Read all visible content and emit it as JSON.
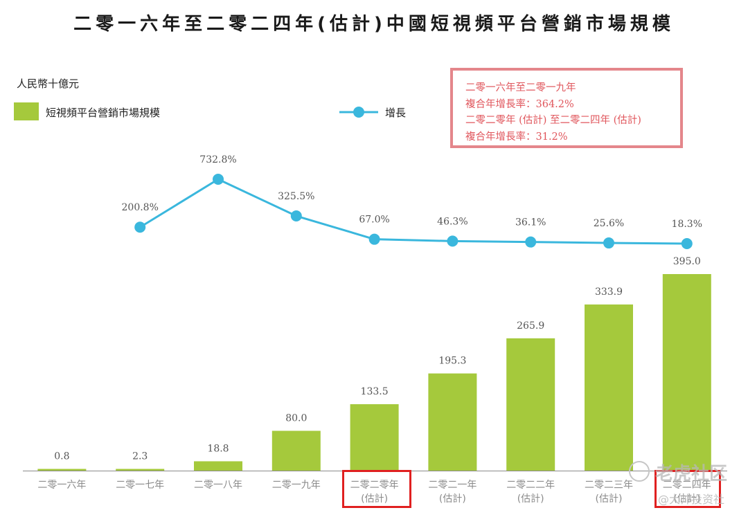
{
  "title": "二零一六年至二零二四年(估計)中國短視頻平台營銷市場規模",
  "unit": "人民幣十億元",
  "legend": {
    "bar": "短視頻平台營銷市場規模",
    "line": "增長"
  },
  "cagr_box": {
    "line1": "二零一六年至二零一九年",
    "line2": "複合年增長率：364.2%",
    "line3": "二零二零年 (估計) 至二零二四年 (估計)",
    "line4": "複合年增長率：31.2%"
  },
  "watermark": {
    "text1": "老虎社区",
    "text2": "@大帅投资社"
  },
  "colors": {
    "bar": "#a5c93c",
    "line": "#3ab7dd",
    "cagr_text": "#e0565c",
    "highlight": "#e02020"
  },
  "chart_data": {
    "type": "bar",
    "categories": [
      [
        "二零一六年"
      ],
      [
        "二零一七年"
      ],
      [
        "二零一八年"
      ],
      [
        "二零一九年"
      ],
      [
        "二零二零年",
        "(估計)"
      ],
      [
        "二零二一年",
        "(估計)"
      ],
      [
        "二零二二年",
        "(估計)"
      ],
      [
        "二零二三年",
        "(估計)"
      ],
      [
        "二零二四年",
        "(估計)"
      ]
    ],
    "series": [
      {
        "name": "短視頻平台營銷市場規模",
        "type": "bar",
        "values": [
          0.8,
          2.3,
          18.8,
          80.0,
          133.5,
          195.3,
          265.9,
          333.9,
          395.0
        ],
        "labels": [
          "0.8",
          "2.3",
          "18.8",
          "80.0",
          "133.5",
          "195.3",
          "265.9",
          "333.9",
          "395.0"
        ]
      },
      {
        "name": "增長",
        "type": "line",
        "values": [
          null,
          200.8,
          732.8,
          325.5,
          67.0,
          46.3,
          36.1,
          25.6,
          18.3
        ],
        "labels": [
          null,
          "200.8%",
          "732.8%",
          "325.5%",
          "67.0%",
          "46.3%",
          "36.1%",
          "25.6%",
          "18.3%"
        ]
      }
    ],
    "highlighted_categories": [
      "二零二零年",
      "二零二四年"
    ]
  }
}
